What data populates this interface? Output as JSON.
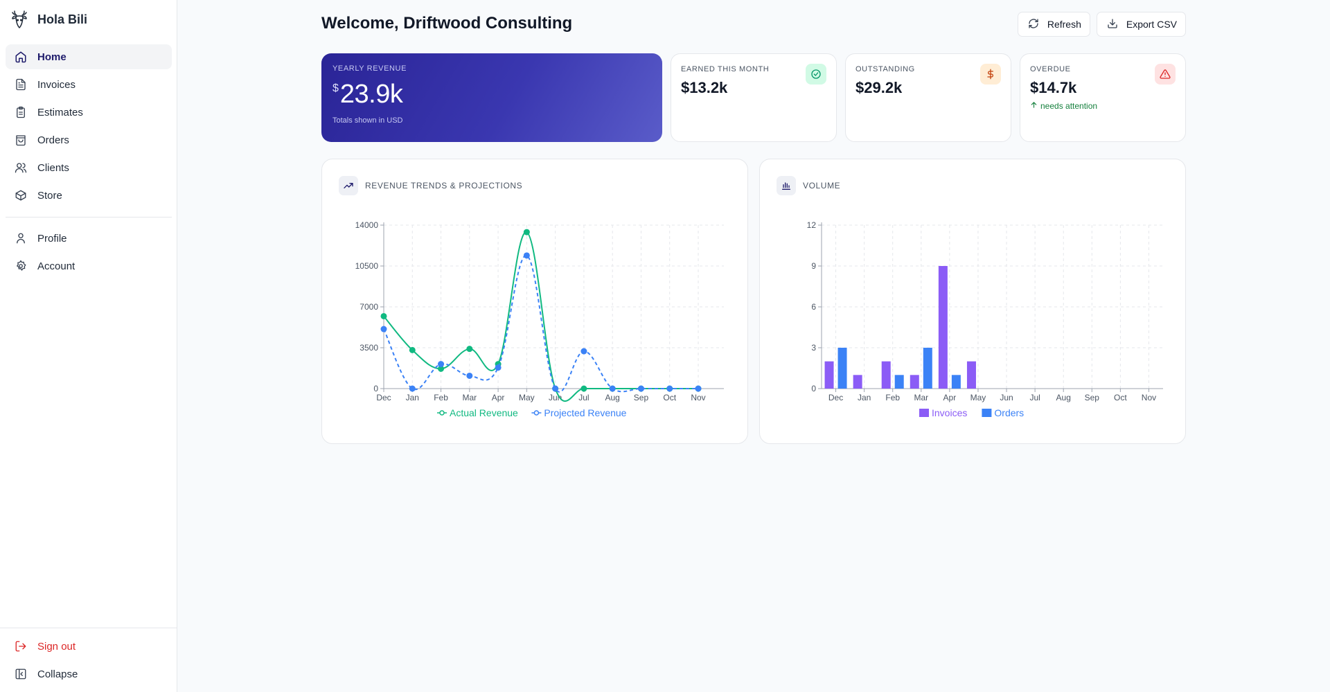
{
  "app": {
    "name": "Hola Bili"
  },
  "sidebar": {
    "items": [
      {
        "label": "Home",
        "icon": "home-icon"
      },
      {
        "label": "Invoices",
        "icon": "file-text-icon"
      },
      {
        "label": "Estimates",
        "icon": "clipboard-icon"
      },
      {
        "label": "Orders",
        "icon": "shopping-bag-icon"
      },
      {
        "label": "Clients",
        "icon": "users-icon"
      },
      {
        "label": "Store",
        "icon": "box-icon"
      }
    ],
    "secondary": [
      {
        "label": "Profile",
        "icon": "user-icon"
      },
      {
        "label": "Account",
        "icon": "gear-icon"
      }
    ],
    "bottom": [
      {
        "label": "Sign out",
        "icon": "sign-out-icon"
      },
      {
        "label": "Collapse",
        "icon": "collapse-icon"
      }
    ]
  },
  "header": {
    "title": "Welcome, Driftwood Consulting",
    "refresh_label": "Refresh",
    "export_label": "Export CSV"
  },
  "stats": {
    "yearly": {
      "label": "YEARLY REVENUE",
      "currency": "$",
      "value": "23.9k",
      "note": "Totals shown in USD"
    },
    "earned": {
      "label": "EARNED THIS MONTH",
      "value": "$13.2k",
      "icon": "check-circle-icon",
      "color": "#10b981"
    },
    "outstanding": {
      "label": "OUTSTANDING",
      "value": "$29.2k",
      "icon": "dollar-icon",
      "color": "#c2410c"
    },
    "overdue": {
      "label": "OVERDUE",
      "value": "$14.7k",
      "trend": "needs attention",
      "icon": "alert-triangle-icon",
      "color": "#dc2626"
    }
  },
  "colors": {
    "accent": "#2a2496",
    "actual": "#10b981",
    "projected": "#3b82f6",
    "invoices": "#8b5cf6",
    "orders": "#3b82f6"
  },
  "panels": {
    "revenue": {
      "title": "REVENUE TRENDS & PROJECTIONS",
      "icon": "trending-up-icon"
    },
    "volume": {
      "title": "VOLUME",
      "icon": "bar-chart-icon"
    }
  },
  "chart_data": [
    {
      "type": "line",
      "title": "REVENUE TRENDS & PROJECTIONS",
      "categories": [
        "Dec",
        "Jan",
        "Feb",
        "Mar",
        "Apr",
        "May",
        "Jun",
        "Jul",
        "Aug",
        "Sep",
        "Oct",
        "Nov"
      ],
      "series": [
        {
          "name": "Actual Revenue",
          "values": [
            6200,
            3300,
            1700,
            3400,
            2100,
            13400,
            0,
            0,
            0,
            0,
            0,
            0
          ]
        },
        {
          "name": "Projected Revenue",
          "values": [
            5100,
            0,
            2100,
            1100,
            1800,
            11400,
            0,
            3200,
            0,
            0,
            0,
            0
          ]
        }
      ],
      "yticks": [
        0,
        3500,
        7000,
        10500,
        14000
      ],
      "ylim": [
        0,
        14000
      ],
      "grid": true,
      "legend": "bottom"
    },
    {
      "type": "bar",
      "title": "VOLUME",
      "categories": [
        "Dec",
        "Jan",
        "Feb",
        "Mar",
        "Apr",
        "May",
        "Jun",
        "Jul",
        "Aug",
        "Sep",
        "Oct",
        "Nov"
      ],
      "series": [
        {
          "name": "Invoices",
          "values": [
            2,
            1,
            2,
            1,
            9,
            2,
            0,
            0,
            0,
            0,
            0,
            0
          ]
        },
        {
          "name": "Orders",
          "values": [
            3,
            0,
            1,
            3,
            1,
            0,
            0,
            0,
            0,
            0,
            0,
            0
          ]
        }
      ],
      "yticks": [
        0,
        3,
        6,
        9,
        12
      ],
      "ylim": [
        0,
        12
      ],
      "grid": true,
      "legend": "bottom"
    }
  ]
}
